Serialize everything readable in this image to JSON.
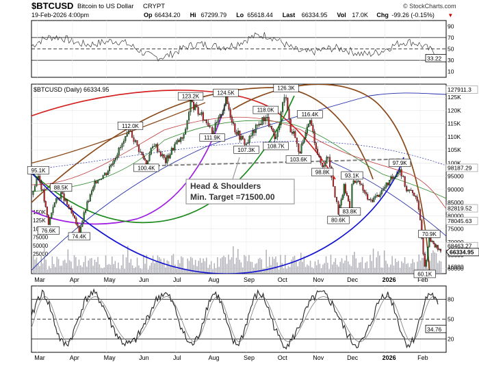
{
  "header": {
    "symbol": "$BTCUSD",
    "description": "Bitcoin to US Dollar",
    "exchange": "CRYPT",
    "date": "19-Feb-2026 4:00pm",
    "watermark": "© StockCharts.com",
    "ohlc": [
      {
        "label": "Op",
        "value": "66434.20"
      },
      {
        "label": "Hi",
        "value": "67299.79"
      },
      {
        "label": "Lo",
        "value": "65618.44"
      },
      {
        "label": "Last",
        "value": "66334.95"
      },
      {
        "label": "Vol",
        "value": "17.0K"
      },
      {
        "label": "Chg",
        "value": "-99.26 (-0.15%)"
      }
    ],
    "down_arrow": "▼"
  },
  "colors": {
    "candle_up": "#2e7d32",
    "candle_down": "#c62828",
    "price_line": "#000000",
    "ma_blue": "#1f2aa8",
    "ma_red": "#c23b3b",
    "ma_green": "#2e8b2e",
    "arc_red": "#d42020",
    "arc_brown": "#8b4a1a",
    "arc_purple": "#a020e0",
    "arc_green": "#1c8a1c",
    "arc_blue": "#1414d2",
    "volume": "#b0b0b8",
    "neckline": "#808080",
    "last_marker": "#000000"
  },
  "chart_data": [
    {
      "type": "line",
      "name": "top-oscillator",
      "ylim": [
        0,
        100
      ],
      "tick_labels": [
        "90",
        "70",
        "50",
        "30",
        "10"
      ],
      "current_label": "33.22",
      "current_value": 33.22
    },
    {
      "type": "candlestick",
      "name": "price",
      "title": "$BTCUSD (Daily) 66334.95",
      "ylim": [
        58000,
        130000
      ],
      "price_ticks": [
        "125K",
        "120K",
        "115K",
        "110K",
        "105K",
        "100K",
        "95000",
        "90000",
        "85000",
        "80000",
        "75000",
        "70000",
        "65000",
        "60000"
      ],
      "right_labels": [
        {
          "label": "127911.3",
          "value": 127911.3
        },
        {
          "label": "98187.29",
          "value": 98187.29
        },
        {
          "label": "82819.52",
          "value": 82819.52
        },
        {
          "label": "78045.63",
          "value": 78045.63
        },
        {
          "label": "68463.27",
          "value": 68463.27
        },
        {
          "label": "66334.95",
          "value": 66334.95
        }
      ],
      "volume_ticks": [
        "150K",
        "125K",
        "100K",
        "75000",
        "50000",
        "25000"
      ],
      "volume_right_label": "16980",
      "x_months": [
        "Mar",
        "Apr",
        "May",
        "Jun",
        "Jul",
        "Aug",
        "Sep",
        "Oct",
        "Nov",
        "Dec",
        "2026",
        "Feb"
      ],
      "close_series": [
        {
          "date": "2025-02-24",
          "value": 88000
        },
        {
          "date": "2025-03-02",
          "value": 95100
        },
        {
          "date": "2025-03-06",
          "value": 89000
        },
        {
          "date": "2025-03-11",
          "value": 76600
        },
        {
          "date": "2025-03-15",
          "value": 84000
        },
        {
          "date": "2025-03-22",
          "value": 88500
        },
        {
          "date": "2025-03-30",
          "value": 82000
        },
        {
          "date": "2025-04-07",
          "value": 74400
        },
        {
          "date": "2025-04-14",
          "value": 84500
        },
        {
          "date": "2025-04-22",
          "value": 93500
        },
        {
          "date": "2025-05-01",
          "value": 96500
        },
        {
          "date": "2025-05-09",
          "value": 103000
        },
        {
          "date": "2025-05-22",
          "value": 112000
        },
        {
          "date": "2025-05-31",
          "value": 104000
        },
        {
          "date": "2025-06-05",
          "value": 100400
        },
        {
          "date": "2025-06-12",
          "value": 107500
        },
        {
          "date": "2025-06-22",
          "value": 100800
        },
        {
          "date": "2025-06-30",
          "value": 107000
        },
        {
          "date": "2025-07-08",
          "value": 110000
        },
        {
          "date": "2025-07-14",
          "value": 123200
        },
        {
          "date": "2025-07-22",
          "value": 118500
        },
        {
          "date": "2025-07-31",
          "value": 114500
        },
        {
          "date": "2025-08-02",
          "value": 111900
        },
        {
          "date": "2025-08-09",
          "value": 117500
        },
        {
          "date": "2025-08-14",
          "value": 124500
        },
        {
          "date": "2025-08-22",
          "value": 113000
        },
        {
          "date": "2025-08-29",
          "value": 108500
        },
        {
          "date": "2025-09-01",
          "value": 107300
        },
        {
          "date": "2025-09-08",
          "value": 112500
        },
        {
          "date": "2025-09-18",
          "value": 118000
        },
        {
          "date": "2025-09-26",
          "value": 109200
        },
        {
          "date": "2025-09-27",
          "value": 108700
        },
        {
          "date": "2025-10-03",
          "value": 122500
        },
        {
          "date": "2025-10-06",
          "value": 126300
        },
        {
          "date": "2025-10-10",
          "value": 112000
        },
        {
          "date": "2025-10-14",
          "value": 111000
        },
        {
          "date": "2025-10-17",
          "value": 103600
        },
        {
          "date": "2025-10-22",
          "value": 108500
        },
        {
          "date": "2025-10-27",
          "value": 116400
        },
        {
          "date": "2025-11-04",
          "value": 101500
        },
        {
          "date": "2025-11-07",
          "value": 98800
        },
        {
          "date": "2025-11-12",
          "value": 103000
        },
        {
          "date": "2025-11-21",
          "value": 80600
        },
        {
          "date": "2025-11-26",
          "value": 91000
        },
        {
          "date": "2025-12-01",
          "value": 83800
        },
        {
          "date": "2025-12-03",
          "value": 93100
        },
        {
          "date": "2025-12-10",
          "value": 92000
        },
        {
          "date": "2025-12-18",
          "value": 85500
        },
        {
          "date": "2025-12-25",
          "value": 87500
        },
        {
          "date": "2026-01-05",
          "value": 93000
        },
        {
          "date": "2026-01-14",
          "value": 97900
        },
        {
          "date": "2026-01-20",
          "value": 90000
        },
        {
          "date": "2026-01-28",
          "value": 88000
        },
        {
          "date": "2026-02-01",
          "value": 78500
        },
        {
          "date": "2026-02-05",
          "value": 60100
        },
        {
          "date": "2026-02-09",
          "value": 70900
        },
        {
          "date": "2026-02-14",
          "value": 68500
        },
        {
          "date": "2026-02-19",
          "value": 66334.95
        }
      ],
      "annotations": [
        {
          "label": "95.1K",
          "date": "2025-03-02",
          "value": 95100,
          "pos": "above"
        },
        {
          "label": "76.6K",
          "date": "2025-03-11",
          "value": 76600,
          "pos": "below"
        },
        {
          "label": "88.5K",
          "date": "2025-03-22",
          "value": 88500,
          "pos": "above"
        },
        {
          "label": "74.4K",
          "date": "2025-04-07",
          "value": 74400,
          "pos": "below"
        },
        {
          "label": "112.0K",
          "date": "2025-05-22",
          "value": 112000,
          "pos": "above"
        },
        {
          "label": "100.4K",
          "date": "2025-06-05",
          "value": 100400,
          "pos": "below"
        },
        {
          "label": "123.2K",
          "date": "2025-07-14",
          "value": 123200,
          "pos": "above"
        },
        {
          "label": "111.9K",
          "date": "2025-08-02",
          "value": 111900,
          "pos": "below"
        },
        {
          "label": "124.5K",
          "date": "2025-08-14",
          "value": 124500,
          "pos": "above"
        },
        {
          "label": "107.3K",
          "date": "2025-09-01",
          "value": 107300,
          "pos": "below"
        },
        {
          "label": "118.0K",
          "date": "2025-09-18",
          "value": 118000,
          "pos": "above"
        },
        {
          "label": "108.7K",
          "date": "2025-09-27",
          "value": 108700,
          "pos": "below"
        },
        {
          "label": "126.3K",
          "date": "2025-10-06",
          "value": 126300,
          "pos": "above"
        },
        {
          "label": "103.6K",
          "date": "2025-10-17",
          "value": 103600,
          "pos": "below"
        },
        {
          "label": "116.4K",
          "date": "2025-10-27",
          "value": 116400,
          "pos": "above"
        },
        {
          "label": "98.8K",
          "date": "2025-11-07",
          "value": 98800,
          "pos": "below"
        },
        {
          "label": "93.1K",
          "date": "2025-12-03",
          "value": 93100,
          "pos": "above"
        },
        {
          "label": "80.6K",
          "date": "2025-11-21",
          "value": 80600,
          "pos": "below"
        },
        {
          "label": "83.8K",
          "date": "2025-12-01",
          "value": 83800,
          "pos": "below"
        },
        {
          "label": "97.9K",
          "date": "2026-01-14",
          "value": 97900,
          "pos": "above"
        },
        {
          "label": "70.9K",
          "date": "2026-02-09",
          "value": 70900,
          "pos": "above"
        },
        {
          "label": "60.1K",
          "date": "2026-02-05",
          "value": 60100,
          "pos": "below"
        }
      ],
      "neckline": {
        "start_date": "2025-06-08",
        "start_value": 99500,
        "end_date": "2026-01-14",
        "end_value": 101000
      },
      "callout": {
        "line1": "Head & Shoulders",
        "line2": "Min. Target =71500.00",
        "target": 71500
      }
    },
    {
      "type": "line",
      "name": "bottom-oscillator",
      "ylim": [
        0,
        100
      ],
      "tick_labels": [
        "80",
        "50",
        "20"
      ],
      "current_label": "34.76",
      "current_value": 34.76
    }
  ]
}
